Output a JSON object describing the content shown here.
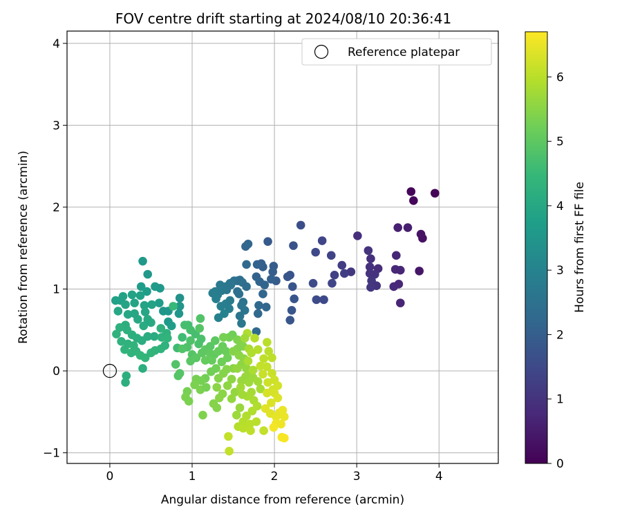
{
  "chart_data": {
    "type": "scatter",
    "title": "FOV centre drift starting at 2024/08/10 20:36:41",
    "xlabel": "Angular distance from reference (arcmin)",
    "ylabel": "Rotation from reference (arcmin)",
    "colorbar_label": "Hours from first FF file",
    "xlim": [
      -0.52,
      4.72
    ],
    "ylim": [
      -1.13,
      4.15
    ],
    "x_ticks": [
      0,
      1,
      2,
      3,
      4
    ],
    "y_ticks": [
      -1,
      0,
      1,
      2,
      3,
      4
    ],
    "colorbar_ticks": [
      0,
      1,
      2,
      3,
      4,
      5,
      6
    ],
    "colorbar_range": [
      0,
      6.7
    ],
    "colormap": "viridis",
    "colormap_stops": [
      "#440154",
      "#482878",
      "#3e4989",
      "#31688e",
      "#26828e",
      "#1f9e89",
      "#35b779",
      "#6ece58",
      "#b5de2b",
      "#fde725"
    ],
    "grid": true,
    "legend_position": "top-right",
    "reference": {
      "name": "Reference platepar",
      "x": 0,
      "y": 0,
      "marker": "open-circle"
    },
    "points": [
      [
        3.66,
        2.19,
        0.1
      ],
      [
        3.95,
        2.17,
        0.05
      ],
      [
        3.69,
        2.08,
        0.1
      ],
      [
        3.8,
        1.62,
        0.3
      ],
      [
        3.78,
        1.67,
        0.35
      ],
      [
        3.5,
        1.75,
        0.6
      ],
      [
        3.62,
        1.75,
        0.55
      ],
      [
        3.01,
        1.65,
        0.9
      ],
      [
        3.76,
        1.22,
        0.4
      ],
      [
        3.48,
        1.41,
        0.7
      ],
      [
        3.47,
        1.24,
        0.75
      ],
      [
        3.53,
        1.23,
        0.7
      ],
      [
        3.17,
        1.37,
        0.9
      ],
      [
        3.26,
        1.25,
        0.85
      ],
      [
        3.14,
        1.47,
        1.0
      ],
      [
        3.16,
        1.27,
        0.95
      ],
      [
        3.22,
        1.18,
        1.0
      ],
      [
        3.18,
        1.1,
        1.05
      ],
      [
        3.24,
        1.04,
        1.0
      ],
      [
        3.17,
        1.02,
        1.05
      ],
      [
        3.45,
        1.03,
        0.8
      ],
      [
        3.51,
        1.06,
        0.75
      ],
      [
        3.53,
        0.83,
        0.7
      ],
      [
        3.16,
        1.19,
        1.0
      ],
      [
        2.93,
        1.21,
        1.1
      ],
      [
        2.82,
        1.29,
        1.2
      ],
      [
        2.85,
        1.19,
        1.25
      ],
      [
        2.73,
        1.17,
        1.3
      ],
      [
        2.69,
        1.41,
        1.35
      ],
      [
        2.58,
        1.59,
        1.4
      ],
      [
        2.5,
        1.45,
        1.5
      ],
      [
        2.47,
        1.07,
        1.55
      ],
      [
        2.51,
        0.87,
        1.55
      ],
      [
        2.6,
        0.87,
        1.5
      ],
      [
        2.7,
        1.07,
        1.4
      ],
      [
        2.32,
        1.78,
        1.6
      ],
      [
        2.23,
        1.53,
        1.7
      ],
      [
        2.16,
        1.15,
        1.8
      ],
      [
        2.19,
        1.17,
        1.75
      ],
      [
        2.22,
        1.03,
        1.75
      ],
      [
        2.21,
        0.74,
        1.8
      ],
      [
        2.19,
        0.62,
        1.8
      ],
      [
        2.24,
        0.88,
        1.8
      ],
      [
        1.92,
        1.58,
        1.9
      ],
      [
        1.99,
        1.28,
        1.95
      ],
      [
        1.98,
        1.21,
        2.0
      ],
      [
        2.02,
        1.1,
        1.95
      ],
      [
        1.96,
        1.12,
        2.05
      ],
      [
        1.86,
        1.27,
        2.0
      ],
      [
        1.84,
        1.31,
        2.05
      ],
      [
        1.79,
        1.3,
        2.1
      ],
      [
        1.78,
        1.15,
        2.1
      ],
      [
        1.82,
        1.09,
        2.15
      ],
      [
        1.88,
        1.05,
        2.15
      ],
      [
        1.86,
        0.94,
        2.2
      ],
      [
        1.81,
        0.8,
        2.25
      ],
      [
        1.9,
        0.78,
        2.2
      ],
      [
        1.8,
        0.7,
        2.25
      ],
      [
        1.78,
        0.48,
        2.3
      ],
      [
        1.65,
        1.52,
        2.2
      ],
      [
        1.68,
        1.55,
        2.2
      ],
      [
        1.66,
        1.3,
        2.3
      ],
      [
        1.58,
        1.11,
        2.4
      ],
      [
        1.55,
        1.1,
        2.4
      ],
      [
        1.61,
        1.08,
        2.45
      ],
      [
        1.66,
        1.03,
        2.4
      ],
      [
        1.55,
        0.97,
        2.5
      ],
      [
        1.57,
        0.94,
        2.5
      ],
      [
        1.62,
        0.84,
        2.55
      ],
      [
        1.6,
        0.8,
        2.6
      ],
      [
        1.64,
        0.74,
        2.6
      ],
      [
        1.58,
        0.67,
        2.55
      ],
      [
        1.6,
        0.58,
        2.65
      ],
      [
        1.51,
        1.1,
        2.5
      ],
      [
        1.46,
        1.07,
        2.6
      ],
      [
        1.41,
        1.03,
        2.65
      ],
      [
        1.34,
        1.05,
        2.7
      ],
      [
        1.36,
        0.98,
        2.75
      ],
      [
        1.28,
        0.97,
        2.8
      ],
      [
        1.31,
        0.93,
        2.8
      ],
      [
        1.25,
        0.95,
        2.85
      ],
      [
        1.29,
        0.88,
        2.9
      ],
      [
        1.35,
        0.79,
        2.9
      ],
      [
        1.41,
        0.82,
        2.85
      ],
      [
        1.45,
        0.76,
        2.85
      ],
      [
        1.39,
        0.7,
        2.95
      ],
      [
        1.32,
        0.65,
        2.95
      ],
      [
        1.42,
        0.99,
        2.7
      ],
      [
        1.46,
        0.86,
        2.8
      ],
      [
        1.47,
        1.05,
        2.6
      ],
      [
        0.4,
        1.34,
        3.6
      ],
      [
        0.46,
        1.18,
        3.55
      ],
      [
        0.38,
        1.03,
        3.7
      ],
      [
        0.45,
        0.97,
        3.7
      ],
      [
        0.55,
        1.03,
        3.65
      ],
      [
        0.61,
        1.01,
        3.6
      ],
      [
        0.6,
        0.83,
        3.7
      ],
      [
        0.65,
        0.73,
        3.5
      ],
      [
        0.85,
        0.89,
        3.4
      ],
      [
        0.85,
        0.79,
        3.5
      ],
      [
        0.84,
        0.7,
        3.5
      ],
      [
        0.71,
        0.73,
        3.5
      ],
      [
        0.71,
        0.6,
        3.6
      ],
      [
        0.75,
        0.55,
        3.7
      ],
      [
        0.07,
        0.86,
        3.8
      ],
      [
        0.13,
        0.86,
        3.8
      ],
      [
        0.16,
        0.91,
        3.85
      ],
      [
        0.27,
        0.93,
        3.85
      ],
      [
        0.19,
        0.81,
        3.9
      ],
      [
        0.3,
        0.83,
        3.9
      ],
      [
        0.37,
        0.92,
        3.8
      ],
      [
        0.42,
        0.8,
        3.9
      ],
      [
        0.43,
        0.72,
        3.95
      ],
      [
        0.51,
        0.81,
        3.85
      ],
      [
        0.1,
        0.73,
        4.0
      ],
      [
        0.22,
        0.69,
        4.0
      ],
      [
        0.3,
        0.7,
        3.95
      ],
      [
        0.34,
        0.63,
        4.0
      ],
      [
        0.46,
        0.63,
        4.05
      ],
      [
        0.41,
        0.55,
        4.1
      ],
      [
        0.5,
        0.59,
        4.05
      ],
      [
        0.54,
        0.42,
        4.1
      ],
      [
        0.46,
        0.42,
        4.15
      ],
      [
        0.39,
        0.37,
        4.15
      ],
      [
        0.33,
        0.4,
        4.2
      ],
      [
        0.27,
        0.44,
        4.2
      ],
      [
        0.21,
        0.5,
        4.25
      ],
      [
        0.19,
        0.56,
        4.2
      ],
      [
        0.12,
        0.53,
        4.25
      ],
      [
        0.08,
        0.45,
        4.3
      ],
      [
        0.14,
        0.36,
        4.3
      ],
      [
        0.22,
        0.33,
        4.3
      ],
      [
        0.29,
        0.31,
        4.35
      ],
      [
        0.18,
        0.26,
        4.35
      ],
      [
        0.26,
        0.22,
        4.35
      ],
      [
        0.32,
        0.24,
        4.35
      ],
      [
        0.37,
        0.19,
        4.4
      ],
      [
        0.43,
        0.16,
        4.4
      ],
      [
        0.5,
        0.22,
        4.4
      ],
      [
        0.55,
        0.25,
        4.35
      ],
      [
        0.62,
        0.27,
        4.35
      ],
      [
        0.67,
        0.31,
        4.3
      ],
      [
        0.63,
        0.41,
        4.3
      ],
      [
        0.69,
        0.46,
        4.25
      ],
      [
        0.62,
        0.52,
        4.3
      ],
      [
        0.7,
        0.4,
        4.35
      ],
      [
        0.4,
        0.03,
        4.2
      ],
      [
        0.2,
        -0.06,
        4.2
      ],
      [
        0.19,
        -0.14,
        4.2
      ],
      [
        0.77,
        0.79,
        4.5
      ],
      [
        0.82,
        0.28,
        4.6
      ],
      [
        0.88,
        0.41,
        4.6
      ],
      [
        0.95,
        0.56,
        4.65
      ],
      [
        0.91,
        0.56,
        4.7
      ],
      [
        0.98,
        0.5,
        4.7
      ],
      [
        1.04,
        0.45,
        4.7
      ],
      [
        1.11,
        0.39,
        4.75
      ],
      [
        1.08,
        0.33,
        4.75
      ],
      [
        0.98,
        0.37,
        4.8
      ],
      [
        0.94,
        0.29,
        4.8
      ],
      [
        0.88,
        0.27,
        4.85
      ],
      [
        0.8,
        0.08,
        4.85
      ],
      [
        0.85,
        -0.03,
        4.9
      ],
      [
        0.83,
        -0.06,
        4.9
      ],
      [
        1.0,
        0.2,
        4.9
      ],
      [
        1.05,
        0.16,
        4.95
      ],
      [
        0.98,
        0.12,
        4.95
      ],
      [
        1.09,
        0.52,
        4.9
      ],
      [
        1.1,
        0.64,
        4.85
      ],
      [
        1.16,
        0.26,
        5.0
      ],
      [
        1.12,
        0.22,
        5.0
      ],
      [
        1.22,
        0.3,
        4.95
      ],
      [
        1.28,
        0.37,
        5.0
      ],
      [
        1.22,
        0.21,
        5.05
      ],
      [
        1.16,
        0.13,
        5.1
      ],
      [
        1.27,
        0.2,
        5.05
      ],
      [
        1.24,
        0.13,
        5.1
      ],
      [
        1.32,
        0.24,
        5.1
      ],
      [
        1.37,
        0.3,
        5.15
      ],
      [
        1.41,
        0.24,
        5.15
      ],
      [
        1.43,
        0.16,
        5.2
      ],
      [
        1.36,
        0.11,
        5.2
      ],
      [
        1.29,
        0.03,
        5.25
      ],
      [
        1.23,
        -0.01,
        5.25
      ],
      [
        1.16,
        -0.09,
        5.25
      ],
      [
        1.11,
        -0.12,
        5.3
      ],
      [
        1.05,
        -0.1,
        5.3
      ],
      [
        1.03,
        -0.17,
        5.35
      ],
      [
        1.1,
        -0.23,
        5.35
      ],
      [
        1.17,
        -0.2,
        5.3
      ],
      [
        0.94,
        -0.25,
        5.3
      ],
      [
        0.92,
        -0.32,
        5.35
      ],
      [
        0.96,
        -0.37,
        5.35
      ],
      [
        1.13,
        -0.54,
        5.4
      ],
      [
        1.26,
        -0.4,
        5.45
      ],
      [
        1.3,
        -0.45,
        5.45
      ],
      [
        1.33,
        -0.33,
        5.5
      ],
      [
        1.37,
        -0.28,
        5.5
      ],
      [
        1.3,
        -0.2,
        5.5
      ],
      [
        1.32,
        -0.09,
        5.45
      ],
      [
        1.38,
        -0.03,
        5.45
      ],
      [
        1.42,
        0.02,
        5.45
      ],
      [
        1.5,
        0.03,
        5.5
      ],
      [
        1.48,
        -0.1,
        5.55
      ],
      [
        1.43,
        -0.18,
        5.55
      ],
      [
        1.52,
        -0.26,
        5.6
      ],
      [
        1.48,
        -0.34,
        5.6
      ],
      [
        1.58,
        -0.45,
        5.65
      ],
      [
        1.54,
        -0.54,
        5.7
      ],
      [
        1.49,
        0.44,
        5.2
      ],
      [
        1.45,
        0.41,
        5.25
      ],
      [
        1.38,
        0.41,
        5.3
      ],
      [
        1.55,
        0.38,
        5.35
      ],
      [
        1.59,
        0.34,
        5.4
      ],
      [
        1.62,
        0.3,
        5.45
      ],
      [
        1.55,
        0.27,
        5.4
      ],
      [
        1.5,
        0.24,
        5.45
      ],
      [
        1.57,
        0.19,
        5.5
      ],
      [
        1.63,
        0.15,
        5.55
      ],
      [
        1.6,
        0.08,
        5.55
      ],
      [
        1.55,
        0.03,
        5.6
      ],
      [
        1.66,
        0.03,
        5.6
      ],
      [
        1.71,
        -0.02,
        5.65
      ],
      [
        1.65,
        -0.07,
        5.65
      ],
      [
        1.6,
        -0.12,
        5.65
      ],
      [
        1.69,
        -0.14,
        5.7
      ],
      [
        1.74,
        -0.08,
        5.7
      ],
      [
        1.8,
        -0.13,
        5.75
      ],
      [
        1.83,
        -0.22,
        5.8
      ],
      [
        1.72,
        -0.26,
        5.8
      ],
      [
        1.67,
        -0.31,
        5.8
      ],
      [
        1.61,
        -0.29,
        5.75
      ],
      [
        1.59,
        -0.2,
        5.75
      ],
      [
        1.75,
        -0.36,
        5.85
      ],
      [
        1.79,
        -0.43,
        5.9
      ],
      [
        1.73,
        -0.49,
        5.9
      ],
      [
        1.66,
        -0.55,
        5.9
      ],
      [
        1.62,
        -0.62,
        5.95
      ],
      [
        1.56,
        -0.68,
        5.95
      ],
      [
        1.62,
        -0.7,
        6.0
      ],
      [
        1.7,
        -0.65,
        6.0
      ],
      [
        1.78,
        -0.62,
        6.0
      ],
      [
        1.71,
        -0.73,
        6.05
      ],
      [
        1.44,
        -0.8,
        6.1
      ],
      [
        1.45,
        -0.98,
        6.1
      ],
      [
        1.87,
        -0.73,
        6.1
      ],
      [
        1.67,
        0.46,
        5.9
      ],
      [
        1.76,
        0.4,
        5.95
      ],
      [
        1.91,
        0.35,
        6.0
      ],
      [
        1.8,
        0.26,
        5.95
      ],
      [
        1.93,
        0.24,
        6.0
      ],
      [
        1.97,
        0.16,
        6.05
      ],
      [
        1.87,
        0.15,
        6.05
      ],
      [
        1.83,
        0.06,
        6.1
      ],
      [
        1.91,
        0.05,
        6.1
      ],
      [
        1.86,
        -0.04,
        6.15
      ],
      [
        1.97,
        -0.03,
        6.15
      ],
      [
        2.0,
        -0.11,
        6.2
      ],
      [
        1.92,
        -0.14,
        6.2
      ],
      [
        2.04,
        -0.18,
        6.25
      ],
      [
        1.98,
        -0.23,
        6.25
      ],
      [
        1.91,
        -0.27,
        6.3
      ],
      [
        2.0,
        -0.27,
        6.3
      ],
      [
        2.04,
        -0.33,
        6.35
      ],
      [
        1.96,
        -0.39,
        6.35
      ],
      [
        1.89,
        -0.46,
        6.4
      ],
      [
        1.95,
        -0.52,
        6.4
      ],
      [
        2.02,
        -0.56,
        6.45
      ],
      [
        2.06,
        -0.51,
        6.45
      ],
      [
        2.1,
        -0.48,
        6.5
      ],
      [
        2.12,
        -0.56,
        6.5
      ],
      [
        2.08,
        -0.65,
        6.55
      ],
      [
        2.02,
        -0.64,
        6.55
      ],
      [
        1.99,
        -0.69,
        6.6
      ],
      [
        2.09,
        -0.81,
        6.6
      ],
      [
        2.12,
        -0.82,
        6.65
      ],
      [
        1.68,
        0.12,
        5.85
      ],
      [
        1.74,
        0.01,
        5.85
      ],
      [
        1.69,
        0.27,
        5.8
      ],
      [
        1.64,
        0.4,
        5.75
      ],
      [
        1.72,
        0.22,
        5.9
      ]
    ]
  }
}
